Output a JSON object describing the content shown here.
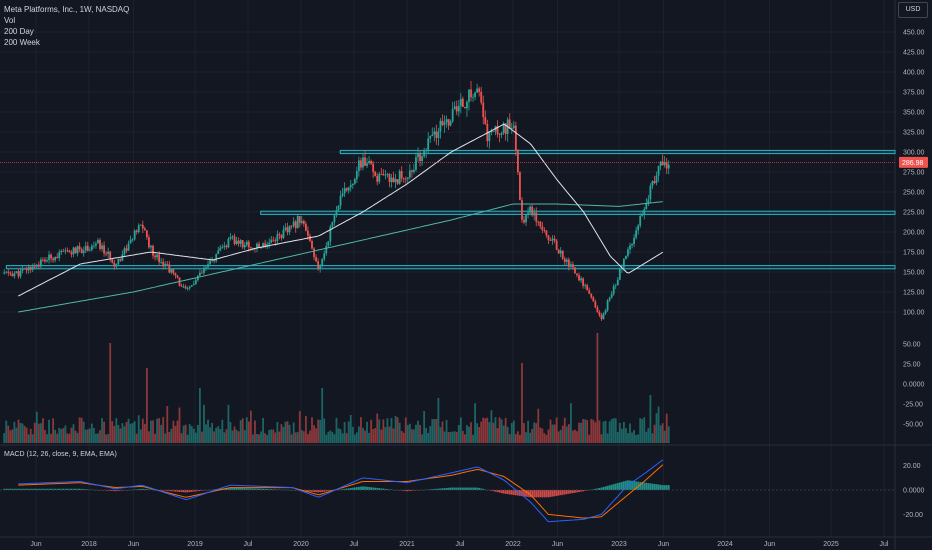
{
  "legend": {
    "symbol": "Meta Platforms, Inc., 1W, NASDAQ",
    "vol": "Vol",
    "ma1": "200 Day",
    "ma2": "200 Week"
  },
  "currency": "USD",
  "macd_label": "MACD (12, 26, close, 9, EMA, EMA)",
  "price_tag": "286.98",
  "colors": {
    "background": "#131722",
    "up": "#26a69a",
    "down": "#ef5350",
    "zone": "#22b8c8",
    "ma_day": "#e0e3eb",
    "ma_week": "#4fb7a8",
    "macd": "#2962ff",
    "signal": "#ff6d00"
  },
  "chart_data": [
    {
      "type": "candlestick",
      "title": "Meta Platforms, Inc., 1W, NASDAQ",
      "xaxis_labels": [
        "Jun",
        "2018",
        "Jun",
        "2019",
        "Jul",
        "2020",
        "Jul",
        "2021",
        "Jul",
        "2022",
        "Jun",
        "2023",
        "Jun",
        "2024",
        "Jun",
        "2025",
        "Jul"
      ],
      "y_ticks": [
        "450.00",
        "425.00",
        "400.00",
        "375.00",
        "350.00",
        "325.00",
        "300.00",
        "275.00",
        "250.00",
        "225.00",
        "200.00",
        "175.00",
        "150.00",
        "125.00",
        "100.00"
      ],
      "ylim": [
        87,
        455
      ],
      "last_price": 286.98,
      "zones": [
        [
          298,
          302
        ],
        [
          222,
          226
        ],
        [
          154,
          158
        ]
      ],
      "price_path_keypoints": [
        [
          "2017-05",
          148
        ],
        [
          "2017-09",
          170
        ],
        [
          "2017-12",
          178
        ],
        [
          "2018-02",
          185
        ],
        [
          "2018-04",
          160
        ],
        [
          "2018-07",
          210
        ],
        [
          "2018-08",
          178
        ],
        [
          "2018-10",
          155
        ],
        [
          "2018-12",
          125
        ],
        [
          "2019-03",
          165
        ],
        [
          "2019-05",
          190
        ],
        [
          "2019-08",
          180
        ],
        [
          "2019-12",
          205
        ],
        [
          "2020-01",
          220
        ],
        [
          "2020-03",
          150
        ],
        [
          "2020-05",
          230
        ],
        [
          "2020-08",
          290
        ],
        [
          "2020-10",
          265
        ],
        [
          "2021-01",
          270
        ],
        [
          "2021-04",
          320
        ],
        [
          "2021-06",
          345
        ],
        [
          "2021-09",
          380
        ],
        [
          "2021-10",
          320
        ],
        [
          "2022-01",
          335
        ],
        [
          "2022-02",
          215
        ],
        [
          "2022-03",
          230
        ],
        [
          "2022-05",
          195
        ],
        [
          "2022-07",
          165
        ],
        [
          "2022-09",
          135
        ],
        [
          "2022-11",
          90
        ],
        [
          "2022-12",
          120
        ],
        [
          "2023-02",
          175
        ],
        [
          "2023-04",
          240
        ],
        [
          "2023-06",
          287
        ]
      ],
      "ma_200_day": [
        [
          "2017-05",
          120
        ],
        [
          "2017-12",
          160
        ],
        [
          "2018-08",
          175
        ],
        [
          "2019-03",
          165
        ],
        [
          "2019-08",
          180
        ],
        [
          "2020-03",
          195
        ],
        [
          "2020-08",
          225
        ],
        [
          "2021-01",
          260
        ],
        [
          "2021-06",
          300
        ],
        [
          "2021-12",
          335
        ],
        [
          "2022-03",
          310
        ],
        [
          "2022-06",
          265
        ],
        [
          "2022-09",
          225
        ],
        [
          "2022-12",
          170
        ],
        [
          "2023-02",
          148
        ],
        [
          "2023-06",
          175
        ]
      ],
      "ma_200_week": [
        [
          "2017-05",
          100
        ],
        [
          "2018-06",
          125
        ],
        [
          "2019-06",
          155
        ],
        [
          "2020-06",
          185
        ],
        [
          "2021-06",
          215
        ],
        [
          "2022-01",
          235
        ],
        [
          "2022-06",
          235
        ],
        [
          "2023-01",
          232
        ],
        [
          "2023-06",
          238
        ]
      ]
    },
    {
      "type": "bar",
      "title": "Vol",
      "note": "weekly volume histogram with spikes around 2018-03, 2018-07, 2022-02, 2022-10"
    },
    {
      "type": "line",
      "title": "MACD (12, 26, close, 9, EMA, EMA)",
      "y_ticks": [
        "20.00",
        "0.0000",
        "-20.00"
      ],
      "ylim": [
        -30,
        30
      ],
      "series": [
        {
          "name": "MACD",
          "values": [
            [
              "2017-05",
              5
            ],
            [
              "2017-12",
              7
            ],
            [
              "2018-04",
              1
            ],
            [
              "2018-07",
              4
            ],
            [
              "2018-12",
              -8
            ],
            [
              "2019-05",
              4
            ],
            [
              "2019-12",
              2
            ],
            [
              "2020-03",
              -6
            ],
            [
              "2020-08",
              10
            ],
            [
              "2021-01",
              6
            ],
            [
              "2021-06",
              14
            ],
            [
              "2021-09",
              19
            ],
            [
              "2021-12",
              8
            ],
            [
              "2022-03",
              -10
            ],
            [
              "2022-05",
              -26
            ],
            [
              "2022-09",
              -24
            ],
            [
              "2022-11",
              -20
            ],
            [
              "2023-02",
              4
            ],
            [
              "2023-04",
              14
            ],
            [
              "2023-06",
              25
            ]
          ]
        },
        {
          "name": "Signal",
          "values": [
            [
              "2017-05",
              4
            ],
            [
              "2017-12",
              6
            ],
            [
              "2018-04",
              2
            ],
            [
              "2018-07",
              3
            ],
            [
              "2018-12",
              -6
            ],
            [
              "2019-05",
              2
            ],
            [
              "2019-12",
              2
            ],
            [
              "2020-03",
              -4
            ],
            [
              "2020-08",
              7
            ],
            [
              "2021-01",
              7
            ],
            [
              "2021-06",
              12
            ],
            [
              "2021-09",
              17
            ],
            [
              "2021-12",
              11
            ],
            [
              "2022-03",
              -4
            ],
            [
              "2022-05",
              -20
            ],
            [
              "2022-09",
              -23
            ],
            [
              "2022-11",
              -22
            ],
            [
              "2023-02",
              -4
            ],
            [
              "2023-04",
              8
            ],
            [
              "2023-06",
              21
            ]
          ]
        }
      ]
    }
  ]
}
